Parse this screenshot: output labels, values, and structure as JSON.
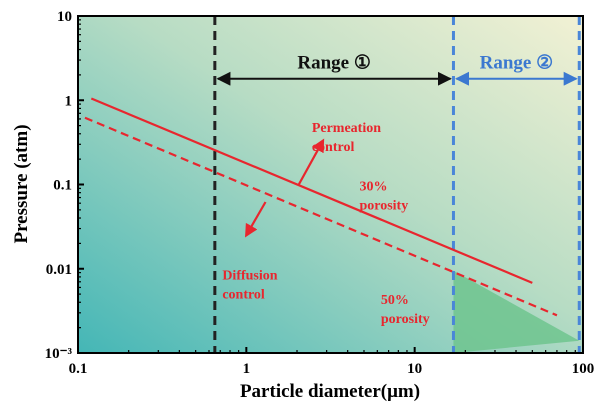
{
  "chart_data": {
    "type": "line",
    "xscale": "log",
    "yscale": "log",
    "xlim": [
      0.1,
      100
    ],
    "ylim": [
      0.001,
      10
    ],
    "xlabel": "Particle diameter(μm)",
    "ylabel": "Pressure (atm)",
    "xticks": [
      {
        "value": 0.1,
        "label": "0.1"
      },
      {
        "value": 1,
        "label": "1"
      },
      {
        "value": 10,
        "label": "10"
      },
      {
        "value": 100,
        "label": "100"
      }
    ],
    "yticks": [
      {
        "value": 10,
        "label": "10"
      },
      {
        "value": 1,
        "label": "1"
      },
      {
        "value": 0.1,
        "label": "0.1"
      },
      {
        "value": 0.01,
        "label": "0.01"
      },
      {
        "value": 0.001,
        "label": "10⁻³"
      }
    ],
    "series": [
      {
        "name": "30% porosity",
        "style": "solid",
        "color": "#e8262e",
        "x": [
          0.12,
          50
        ],
        "y": [
          1.05,
          0.0068
        ]
      },
      {
        "name": "50% porosity",
        "style": "dashed",
        "color": "#e8262e",
        "x": [
          0.11,
          70
        ],
        "y": [
          0.62,
          0.0028
        ]
      }
    ],
    "vertical_lines": [
      {
        "x": 0.65,
        "style": "dashed",
        "color": "#222222"
      },
      {
        "x": 17,
        "style": "dashed",
        "color": "#4a86d8"
      },
      {
        "x": 95,
        "style": "dashed",
        "color": "#4a86d8"
      }
    ],
    "ranges": [
      {
        "label": "Range ①",
        "from": 0.65,
        "to": 17,
        "y": 1.8,
        "color": "#111111"
      },
      {
        "label": "Range ②",
        "from": 17,
        "to": 95,
        "y": 1.8,
        "color": "#3b78d0"
      }
    ],
    "annotations": [
      {
        "lines": [
          "Permeation",
          "control"
        ],
        "x": 2.45,
        "y": 0.42
      },
      {
        "lines": [
          "Diffusion",
          "control"
        ],
        "x": 0.72,
        "y": 0.0075
      },
      {
        "lines": [
          "30%",
          "porosity"
        ],
        "x": 4.7,
        "y": 0.085
      },
      {
        "lines": [
          "50%",
          "porosity"
        ],
        "x": 6.3,
        "y": 0.0038
      }
    ],
    "arrows": [
      {
        "from": [
          2.05,
          0.1
        ],
        "to": [
          2.85,
          0.33
        ],
        "color": "#e8262e"
      },
      {
        "from": [
          1.3,
          0.062
        ],
        "to": [
          1.0,
          0.025
        ],
        "color": "#e8262e"
      }
    ],
    "shaded_region": {
      "x": [
        17,
        17,
        95
      ],
      "y": [
        0.001,
        0.0095,
        0.0014
      ],
      "color": "#6fc48e"
    },
    "colors": {
      "bg_bottom_left": "#44b6b6",
      "bg_top_right": "#f2f1d4",
      "axis": "#000000"
    }
  }
}
